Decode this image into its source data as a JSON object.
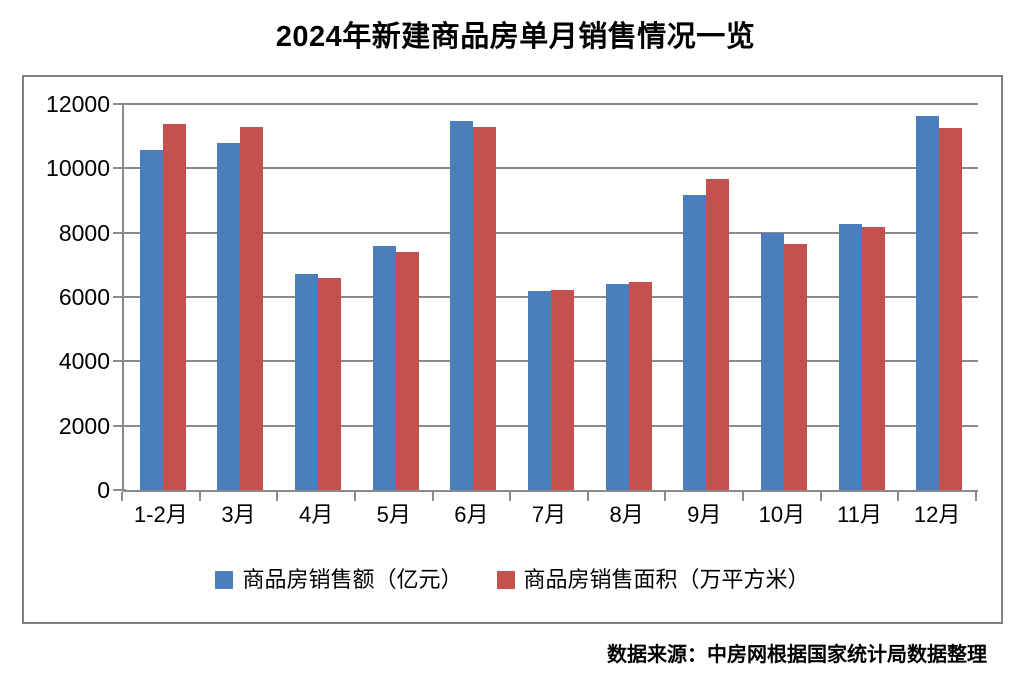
{
  "title": "2024年新建商品房单月销售情况一览",
  "source_note": "数据来源：中房网根据国家统计局数据整理",
  "colors": {
    "series_sales_value": "#4A7EBC",
    "series_sales_area": "#C4504F",
    "gridline": "#8A8A8A",
    "chart_border": "#808080",
    "text": "#000000"
  },
  "chart_data": {
    "type": "bar",
    "title": "2024年新建商品房单月销售情况一览",
    "categories": [
      "1-2月",
      "3月",
      "4月",
      "5月",
      "6月",
      "7月",
      "8月",
      "9月",
      "10月",
      "11月",
      "12月"
    ],
    "series": [
      {
        "name": "商品房销售额（亿元）",
        "color": "#4A7EBC",
        "values": [
          10566,
          10789,
          6712,
          7598,
          11468,
          6197,
          6393,
          9157,
          7975,
          8270,
          11625
        ]
      },
      {
        "name": "商品房销售面积（万平方米）",
        "color": "#C4504F",
        "values": [
          11369,
          11299,
          6584,
          7390,
          11274,
          6233,
          6453,
          9682,
          7646,
          8188,
          11267
        ]
      }
    ],
    "xlabel": "",
    "ylabel": "",
    "ylim": [
      0,
      12000
    ],
    "ytick_step": 2000,
    "yticks": [
      0,
      2000,
      4000,
      6000,
      8000,
      10000,
      12000
    ],
    "grid": true,
    "legend_position": "bottom"
  }
}
